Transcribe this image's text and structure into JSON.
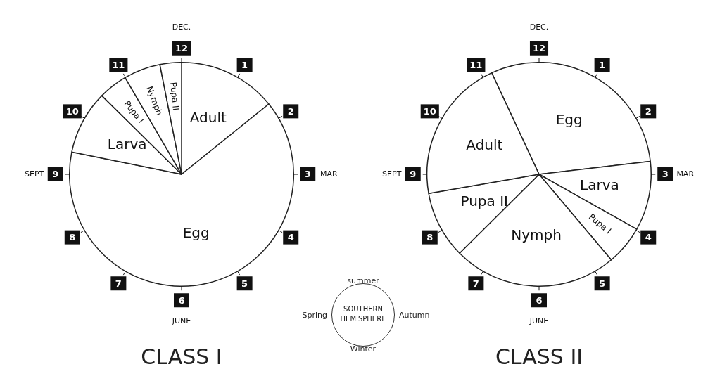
{
  "chart_data": [
    {
      "type": "pie",
      "title": "CLASS I",
      "categories": [
        "Adult",
        "Egg",
        "Larva",
        "Pupa I",
        "Nymph",
        "Pupa II"
      ],
      "values": [
        14.2,
        64.0,
        9.2,
        4.2,
        5.3,
        3.1
      ],
      "colors": [
        "#ffffff",
        "#ffffff",
        "#ffffff",
        "#ffffff",
        "#ffffff",
        "#ffffff"
      ],
      "annotations": [
        "12",
        "1",
        "2",
        "3",
        "4",
        "5",
        "6",
        "7",
        "8",
        "9",
        "10",
        "11",
        "DEC.",
        "MAR",
        "JUNE",
        "SEPT"
      ]
    },
    {
      "type": "other",
      "title": "SOUTHERN HEMISPHERE",
      "annotations": [
        "summer",
        "Autumn",
        "Winter",
        "Spring"
      ]
    },
    {
      "type": "pie",
      "title": "CLASS II",
      "categories": [
        "Egg",
        "Larva",
        "Pupa I",
        "Nymph",
        "Pupa II",
        "Adult"
      ],
      "values": [
        30.1,
        10.0,
        5.7,
        23.7,
        9.7,
        20.8
      ],
      "colors": [
        "#ffffff",
        "#ffffff",
        "#ffffff",
        "#ffffff",
        "#ffffff",
        "#ffffff"
      ],
      "annotations": [
        "12",
        "1",
        "2",
        "3",
        "4",
        "5",
        "6",
        "7",
        "8",
        "9",
        "10",
        "11",
        "DEC.",
        "MAR.",
        "JUNE",
        "SEPT"
      ]
    }
  ]
}
